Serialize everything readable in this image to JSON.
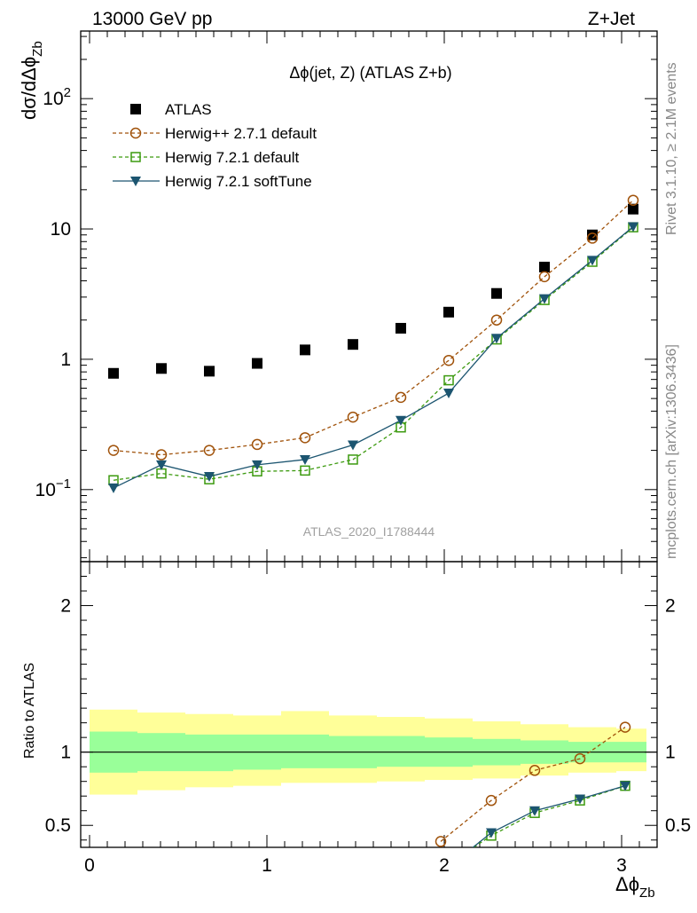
{
  "header": {
    "left": "13000 GeV pp",
    "right": "Z+Jet"
  },
  "side_labels": {
    "rivet": "Rivet 3.1.10, ≥ 2.1M events",
    "mcplots": "mcplots.cern.ch [arXiv:1306.3436]"
  },
  "analysis_id": "ATLAS_2020_I1788444",
  "colors": {
    "atlas": "#000000",
    "herwigpp": "#a0520a",
    "herwig721": "#3c9a0f",
    "softtune": "#1c5570",
    "band_inner": "#99ff99",
    "band_outer": "#ffff99"
  },
  "chart_data": [
    {
      "type": "scatter",
      "title": "Δϕ(jet, Z) (ATLAS Z+b)",
      "ylabel_main": "dσ/dΔϕ",
      "ylabel_sub": "Zb",
      "xlabel_main": "Δϕ",
      "xlabel_sub": "Zb",
      "xlim": [
        -0.05,
        3.2
      ],
      "ylim": [
        0.028,
        330
      ],
      "yscale": "log",
      "yticks": [
        {
          "value": 0.1,
          "base": "10",
          "exp": "−1"
        },
        {
          "value": 1,
          "base": "1",
          "exp": ""
        },
        {
          "value": 10,
          "base": "10",
          "exp": ""
        },
        {
          "value": 100,
          "base": "10",
          "exp": "2"
        }
      ],
      "legend": {
        "position": "top-left",
        "entries": [
          "ATLAS",
          "Herwig++ 2.7.1 default",
          "Herwig 7.2.1 default",
          "Herwig 7.2.1 softTune"
        ]
      },
      "x": [
        0.135,
        0.405,
        0.675,
        0.945,
        1.215,
        1.485,
        1.755,
        2.025,
        2.295,
        2.565,
        2.835,
        3.065
      ],
      "series": [
        {
          "name": "ATLAS",
          "style": "data",
          "values": [
            0.78,
            0.85,
            0.81,
            0.93,
            1.18,
            1.3,
            1.73,
            2.3,
            3.2,
            5.1,
            9.0,
            14.2
          ]
        },
        {
          "name": "Herwig++ 2.7.1 default",
          "style": "circle",
          "values": [
            0.2,
            0.185,
            0.2,
            0.222,
            0.25,
            0.36,
            0.51,
            0.98,
            2.0,
            4.3,
            8.5,
            16.6
          ]
        },
        {
          "name": "Herwig 7.2.1 default",
          "style": "square",
          "values": [
            0.118,
            0.133,
            0.12,
            0.138,
            0.14,
            0.17,
            0.3,
            0.69,
            1.42,
            2.85,
            5.6,
            10.3
          ]
        },
        {
          "name": "Herwig 7.2.1 softTune",
          "style": "triangle",
          "values": [
            0.103,
            0.155,
            0.126,
            0.155,
            0.17,
            0.22,
            0.34,
            0.55,
            1.45,
            2.92,
            5.75,
            10.4
          ]
        }
      ]
    },
    {
      "type": "line",
      "ylabel": "Ratio to ATLAS",
      "xlim": [
        -0.05,
        3.2
      ],
      "ylim": [
        0.35,
        2.3
      ],
      "xticks": [
        0,
        1,
        2,
        3
      ],
      "yticks": [
        0.5,
        1,
        2
      ],
      "bin_edges": [
        0,
        0.27,
        0.54,
        0.81,
        1.08,
        1.35,
        1.62,
        1.89,
        2.16,
        2.43,
        2.7,
        2.97,
        3.14
      ],
      "band_inner_lo": [
        0.86,
        0.87,
        0.87,
        0.88,
        0.89,
        0.89,
        0.9,
        0.9,
        0.91,
        0.92,
        0.93,
        0.93
      ],
      "band_inner_hi": [
        1.14,
        1.13,
        1.12,
        1.12,
        1.12,
        1.11,
        1.11,
        1.1,
        1.09,
        1.08,
        1.07,
        1.07
      ],
      "band_outer_lo": [
        0.71,
        0.74,
        0.76,
        0.77,
        0.79,
        0.79,
        0.8,
        0.81,
        0.82,
        0.84,
        0.86,
        0.87
      ],
      "band_outer_hi": [
        1.29,
        1.27,
        1.26,
        1.25,
        1.28,
        1.25,
        1.24,
        1.23,
        1.21,
        1.19,
        1.17,
        1.16
      ],
      "x": [
        1.98,
        2.265,
        2.51,
        2.765,
        3.02
      ],
      "series": [
        {
          "name": "Herwig++ 2.7.1 default",
          "style": "circle",
          "values": [
            0.39,
            0.67,
            0.875,
            0.955,
            1.17
          ]
        },
        {
          "name": "Herwig 7.2.1 default",
          "style": "square",
          "values": [
            null,
            0.43,
            0.585,
            0.67,
            0.77
          ]
        },
        {
          "name": "Herwig 7.2.1 softTune",
          "style": "triangle",
          "values": [
            null,
            0.45,
            0.6,
            0.68,
            0.77
          ]
        }
      ]
    }
  ]
}
